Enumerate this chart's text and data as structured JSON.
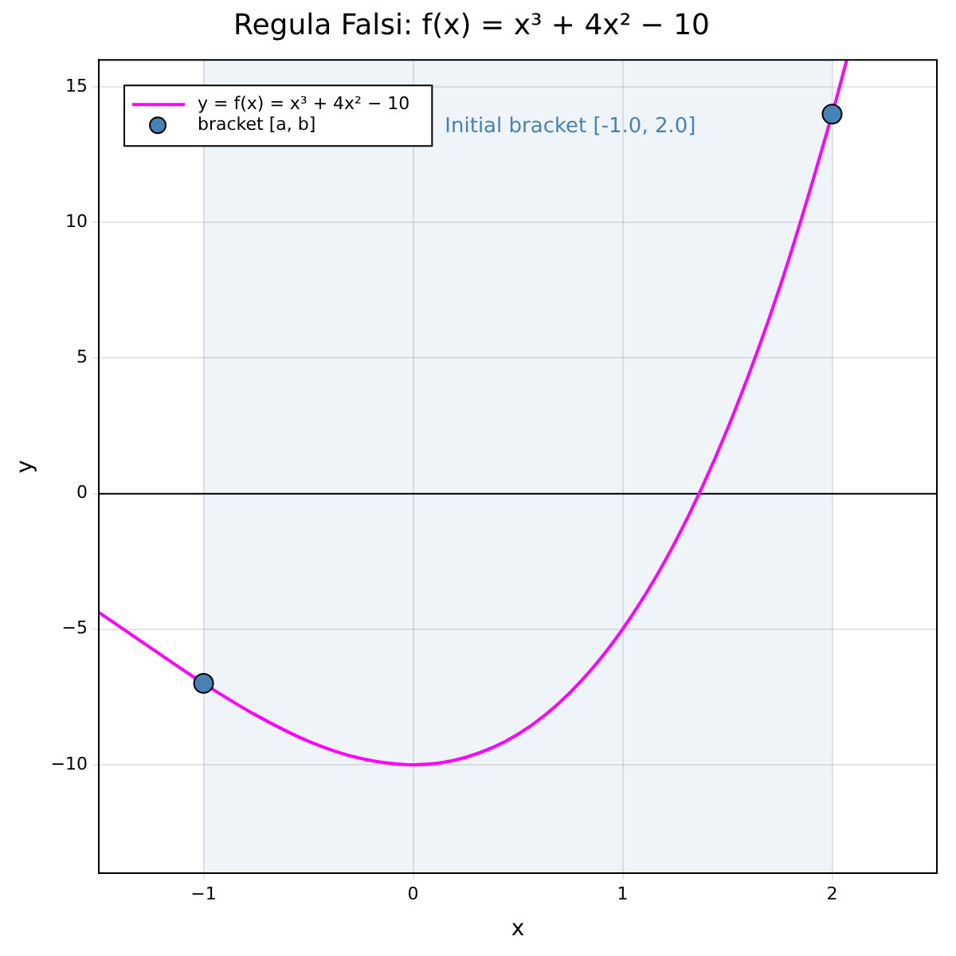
{
  "chart_data": {
    "type": "line",
    "title": "Regula Falsi: f(x) = x³ + 4x² − 10",
    "xlabel": "x",
    "ylabel": "y",
    "xlim": [
      -1.5,
      2.5
    ],
    "xticks": [
      {
        "value": -1,
        "label": "−1"
      },
      0,
      1,
      2
    ],
    "ylim": [
      -14,
      16
    ],
    "yticks": [
      {
        "value": -10,
        "label": "−10"
      },
      {
        "value": -5,
        "label": "−5"
      },
      0,
      5,
      10,
      15
    ],
    "grid": true,
    "legend": "top left",
    "series": [
      {
        "name": "y = f(x) = x³ + 4x² − 10",
        "color": "#ff00ff",
        "marker": "none",
        "x": [
          -1.5,
          -1.25,
          -1,
          -0.75,
          -0.5,
          -0.25,
          0,
          0.25,
          0.5,
          0.75,
          1,
          1.25,
          1.5,
          1.75,
          2,
          2.07
        ],
        "values": [
          -4.38,
          -5.7,
          -7,
          -8.17,
          -9.13,
          -9.77,
          -10,
          -9.73,
          -8.88,
          -7.33,
          -5,
          -1.8,
          2.38,
          7.61,
          14,
          16
        ]
      },
      {
        "name": "bracket [a, b]",
        "type": "scatter",
        "color": "#4682b4",
        "marker": "circle",
        "x": [
          -1,
          2
        ],
        "values": [
          -7,
          14
        ]
      }
    ],
    "ref_lines": [
      {
        "axis": "y",
        "value": 0,
        "color": "#000000"
      }
    ],
    "bands": [
      {
        "axis": "x",
        "from": -1,
        "to": 2,
        "label": "Initial bracket [-1.0, 2.0]",
        "color": "#4682b4"
      }
    ]
  }
}
